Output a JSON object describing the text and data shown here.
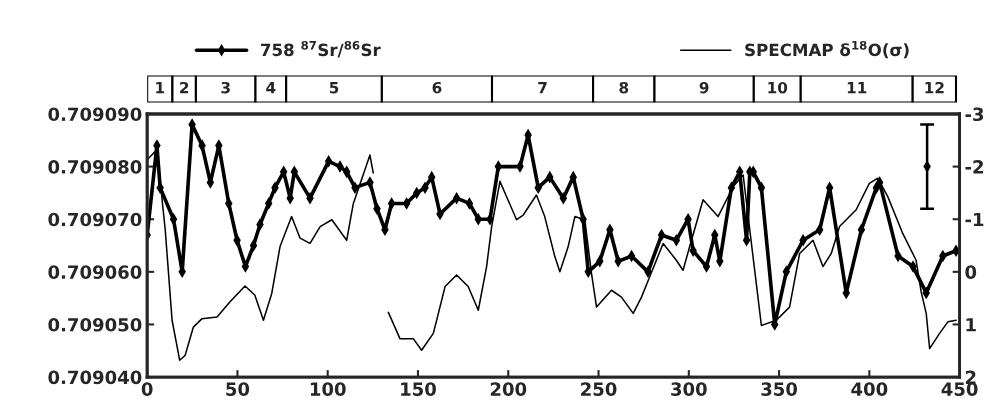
{
  "chart_data": [
    {
      "type": "bar",
      "orientation": "horizontal",
      "stacked": true,
      "categories": [
        null
      ],
      "xlim": [
        0,
        450
      ],
      "tick_labels": false,
      "series": [
        {
          "name": "1",
          "color": "#ffffff",
          "values": [
            14
          ]
        },
        {
          "name": "2",
          "color": "#ffffff",
          "values": [
            13
          ]
        },
        {
          "name": "3",
          "color": "#ffffff",
          "values": [
            33
          ]
        },
        {
          "name": "4",
          "color": "#ffffff",
          "values": [
            17
          ]
        },
        {
          "name": "5",
          "color": "#ffffff",
          "values": [
            53
          ]
        },
        {
          "name": "6",
          "color": "#ffffff",
          "values": [
            61
          ]
        },
        {
          "name": "7",
          "color": "#ffffff",
          "values": [
            56
          ]
        },
        {
          "name": "8",
          "color": "#ffffff",
          "values": [
            34
          ]
        },
        {
          "name": "9",
          "color": "#ffffff",
          "values": [
            55
          ]
        },
        {
          "name": "10",
          "color": "#ffffff",
          "values": [
            26
          ]
        },
        {
          "name": "11",
          "color": "#ffffff",
          "values": [
            62
          ]
        },
        {
          "name": "12",
          "color": "#ffffff",
          "values": [
            24
          ]
        }
      ]
    },
    {
      "type": "line",
      "xlim": [
        0,
        450
      ],
      "xticks": [
        0,
        50,
        100,
        150,
        200,
        250,
        300,
        350,
        400,
        450
      ],
      "ylim": [
        0.70904,
        0.70909
      ],
      "yticks": [
        {
          "value": 0.70904,
          "label": "0.709040"
        },
        {
          "value": 0.70905,
          "label": "0.709050"
        },
        {
          "value": 0.70906,
          "label": "0.709060"
        },
        {
          "value": 0.70907,
          "label": "0.709070"
        },
        {
          "value": 0.70908,
          "label": "0.709080"
        },
        {
          "value": 0.70909,
          "label": "0.709090"
        }
      ],
      "y2lim": [
        2,
        -3
      ],
      "y2ticks": [
        -3,
        -2,
        -1,
        0,
        1,
        2
      ],
      "legend": "top",
      "grid": false,
      "series": [
        {
          "name": "758 $^{87}$Sr/$^{86}$Sr",
          "color": "#000000",
          "marker": "diamond",
          "line_style": "solid",
          "x": [
            0,
            5.4,
            7.2,
            14.6,
            19.4,
            24.9,
            30.4,
            35,
            39.7,
            45.2,
            49.8,
            54.4,
            58.9,
            62.5,
            67.3,
            70.8,
            75.6,
            79.2,
            81.5,
            90.2,
            100.5,
            106.8,
            110.5,
            115.1,
            123.4,
            127.3,
            131.7,
            135.4,
            143.7,
            149.3,
            153.9,
            157.6,
            162.2,
            171.4,
            178.5,
            183.4,
            189.9,
            194.5,
            206.5,
            211,
            216.6,
            223,
            230.5,
            236,
            241.5,
            244.3,
            250.7,
            256.3,
            260.9,
            268.3,
            277.4,
            284.9,
            293.1,
            299.6,
            302.4,
            309.8,
            314.4,
            317.2,
            323.6,
            328.2,
            332,
            333.8,
            335.7,
            340.2,
            347.6,
            354,
            363.3,
            372.5,
            378,
            387.2,
            395.6,
            403.9,
            405.7,
            415.9,
            424.2,
            431.5,
            440.7,
            448
          ],
          "values": [
            0.709067,
            0.709084,
            0.709076,
            0.70907,
            0.70906,
            0.709088,
            0.709084,
            0.709077,
            0.709084,
            0.709073,
            0.709066,
            0.709061,
            0.709065,
            0.709069,
            0.709073,
            0.709076,
            0.709079,
            0.709074,
            0.709079,
            0.709074,
            0.709081,
            0.70908,
            0.709079,
            0.709076,
            0.709077,
            0.709072,
            0.709068,
            0.709073,
            0.709073,
            0.709075,
            0.709076,
            0.709078,
            0.709071,
            0.709074,
            0.709073,
            0.70907,
            0.70907,
            0.70908,
            0.70908,
            0.709086,
            0.709076,
            0.709078,
            0.709074,
            0.709078,
            0.70907,
            0.70906,
            0.709062,
            0.709068,
            0.709062,
            0.709063,
            0.70906,
            0.709067,
            0.709066,
            0.70907,
            0.709064,
            0.709061,
            0.709067,
            0.709062,
            0.709076,
            0.709079,
            0.709066,
            0.709079,
            0.709079,
            0.709076,
            0.70905,
            0.70906,
            0.709066,
            0.709068,
            0.709076,
            0.709056,
            0.709068,
            0.709076,
            0.709077,
            0.709063,
            0.709061,
            0.709056,
            0.709063,
            0.709064
          ]
        },
        {
          "name": "SPECMAP δ$^{18}$O(σ)",
          "color": "#000000",
          "axis": "y2",
          "marker": "none",
          "line_style": "solid",
          "x": [
            0,
            5.4,
            10,
            13.8,
            18,
            21,
            25.6,
            30.4,
            38.7,
            45.9,
            54.2,
            59.6,
            64.4,
            69,
            73.6,
            80,
            84.7,
            90.2,
            95.8,
            102.3,
            110.5,
            114.2,
            123.4,
            125.2,
            129,
            133.6,
            140,
            147.4,
            152,
            158.5,
            161.3,
            165,
            171.4,
            177.8,
            183.4,
            188,
            190.8,
            195.4,
            204.6,
            208.3,
            215.6,
            220.2,
            225.8,
            228.6,
            233.2,
            236.9,
            242.4,
            246.1,
            248.9,
            257.2,
            262.7,
            269.2,
            273.8,
            278.4,
            285.8,
            293.1,
            296.8,
            300.5,
            307.9,
            316.2,
            324.6,
            330.1,
            340.2,
            348.5,
            355.8,
            361.4,
            368.8,
            374.3,
            378.9,
            383.5,
            392.7,
            400,
            404.7,
            410.2,
            418.5,
            425.9,
            428.7,
            431.5,
            433.4,
            438.9,
            443.5,
            448
          ],
          "values": [
            -2.13,
            -2.32,
            -0.8,
            0.92,
            1.68,
            1.59,
            1.05,
            0.89,
            0.86,
            0.57,
            0.27,
            0.44,
            0.92,
            0.41,
            -0.48,
            -1.05,
            -0.64,
            -0.54,
            -0.86,
            -0.99,
            -0.6,
            -1.3,
            -2.22,
            -1.88,
            null,
            0.77,
            1.27,
            1.27,
            1.49,
            1.17,
            0.79,
            0.28,
            0.06,
            0.28,
            0.73,
            -0.1,
            -0.86,
            -1.72,
            -0.99,
            -1.08,
            -1.46,
            -1.05,
            -0.29,
            0.0,
            -0.48,
            -1.05,
            -0.99,
            0.03,
            0.67,
            0.35,
            0.48,
            0.79,
            0.48,
            0.09,
            -0.54,
            -0.22,
            -0.03,
            -0.48,
            -1.37,
            -1.05,
            -1.62,
            -1.84,
            1.02,
            0.92,
            0.67,
            -0.35,
            -0.6,
            -0.1,
            -0.35,
            -0.86,
            -1.18,
            -1.68,
            -1.78,
            -1.43,
            -0.73,
            -0.22,
            0.38,
            0.79,
            1.46,
            1.17,
            0.95,
            0.92
          ]
        },
        {
          "type": "scatter",
          "color": "#000000",
          "marker": "diamond",
          "x": [
            432
          ],
          "values": [
            0.70908
          ],
          "errors": [
            8e-06
          ]
        }
      ]
    }
  ]
}
